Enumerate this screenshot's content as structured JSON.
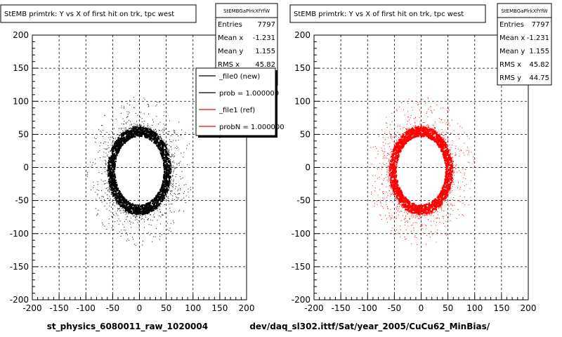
{
  "colors": {
    "new": "#000000",
    "ref": "#ff0000",
    "grid": "#000000",
    "frame": "#000000"
  },
  "chart_data": [
    {
      "type": "scatter",
      "title": "StEMB primtrk: Y vs X of first hit on trk, tpc west",
      "xlabel": "st_physics_6080011_raw_1020004",
      "ylabel": "",
      "xlim": [
        -200,
        200
      ],
      "ylim": [
        -200,
        200
      ],
      "x_ticks": [
        -200,
        -150,
        -100,
        -50,
        0,
        50,
        100,
        150,
        200
      ],
      "y_ticks": [
        -200,
        -150,
        -100,
        -50,
        0,
        50,
        100,
        150,
        200
      ],
      "grid": true,
      "marker_color": "#000000",
      "series": [
        {
          "name": "_file0 (new)",
          "color": "#000000"
        },
        {
          "name": "_file1 (ref)",
          "color": "#ff0000"
        }
      ],
      "distribution": {
        "shape": "ring",
        "center": [
          0,
          -5
        ],
        "inner_radius_x": 46,
        "inner_radius_y": 52,
        "outer_radius_x": 60,
        "outer_radius_y": 65,
        "halo_extent": 100
      },
      "stats": {
        "header": "StEMBGaPlrkXfYfW",
        "rows": [
          {
            "label": "Entries",
            "value": "7797"
          },
          {
            "label": "Mean x",
            "value": "-1.231"
          },
          {
            "label": "Mean y",
            "value": "1.155"
          },
          {
            "label": "RMS x",
            "value": "45.82"
          },
          {
            "label": "RMS y",
            "value": "44.75"
          }
        ]
      },
      "legend": {
        "position": "top-right",
        "entries": [
          {
            "text": "_file0 (new)",
            "color": "#000000"
          },
          {
            "text": "prob = 1.000000",
            "color": "#000000"
          },
          {
            "text": "_file1 (ref)",
            "color": "#ff0000"
          },
          {
            "text": "probN = 1.000000",
            "color": "#ff0000"
          }
        ]
      }
    },
    {
      "type": "scatter",
      "title": "StEMB primtrk: Y vs X of first hit on trk, tpc west",
      "xlabel": "dev/daq_sl302.ittf/Sat/year_2005/CuCu62_MinBias/",
      "ylabel": "",
      "xlim": [
        -200,
        200
      ],
      "ylim": [
        -200,
        200
      ],
      "x_ticks": [
        -200,
        -150,
        -100,
        -50,
        0,
        50,
        100,
        150,
        200
      ],
      "y_ticks": [
        -200,
        -150,
        -100,
        -50,
        0,
        50,
        100,
        150,
        200
      ],
      "grid": true,
      "marker_color": "#ff0000",
      "distribution": {
        "shape": "ring",
        "center": [
          0,
          -5
        ],
        "inner_radius_x": 46,
        "inner_radius_y": 52,
        "outer_radius_x": 60,
        "outer_radius_y": 65,
        "halo_extent": 100
      },
      "stats": {
        "header": "StEMBGaPlrkXfYfW",
        "rows": [
          {
            "label": "Entries",
            "value": "7797"
          },
          {
            "label": "Mean x",
            "value": "-1.231"
          },
          {
            "label": "Mean y",
            "value": "1.155"
          },
          {
            "label": "RMS x",
            "value": "45.82"
          },
          {
            "label": "RMS y",
            "value": "44.75"
          }
        ]
      }
    }
  ]
}
